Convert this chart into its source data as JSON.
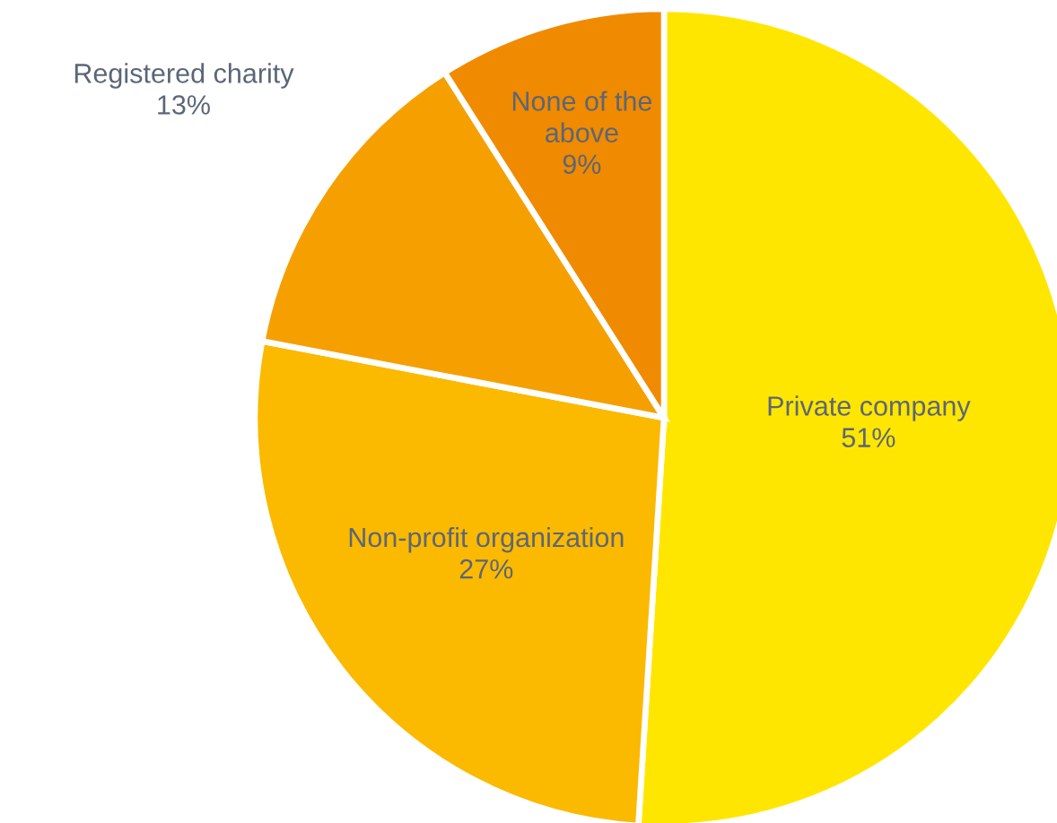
{
  "chart_data": {
    "type": "pie",
    "categories": [
      "Private company",
      "Non-profit organization",
      "Registered charity",
      "None of the\nabove"
    ],
    "values": [
      51,
      27,
      13,
      9
    ],
    "colors": [
      "#ffe600",
      "#fbb900",
      "#f5a000",
      "#f08a00"
    ],
    "value_labels": [
      "51%",
      "27%",
      "13%",
      "9%"
    ],
    "legend": false
  }
}
